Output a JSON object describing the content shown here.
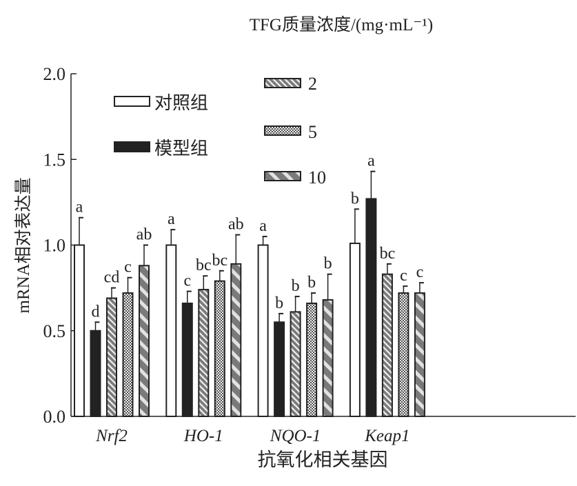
{
  "chart_data": {
    "type": "bar",
    "legend_title": "TFG质量浓度/(mg·mL⁻¹)",
    "ylabel": "mRNA相对表达量",
    "xlabel": "抗氧化相关基因",
    "ylim": [
      0,
      2.0
    ],
    "yticks": [
      "0.0",
      "0.5",
      "1.0",
      "1.5",
      "2.0"
    ],
    "categories": [
      "Nrf2",
      "HO-1",
      "NQO-1",
      "Keap1"
    ],
    "legend_placement": "top",
    "series": [
      {
        "name": "对照组",
        "pattern": "white",
        "values": [
          1.0,
          1.0,
          1.0,
          1.01
        ],
        "errors": [
          0.16,
          0.09,
          0.05,
          0.2
        ],
        "letters": [
          "a",
          "a",
          "a",
          "b"
        ]
      },
      {
        "name": "模型组",
        "pattern": "black",
        "values": [
          0.5,
          0.66,
          0.55,
          1.27
        ],
        "errors": [
          0.05,
          0.07,
          0.05,
          0.16
        ],
        "letters": [
          "d",
          "c",
          "b",
          "a"
        ]
      },
      {
        "name": "2",
        "pattern": "fine-stripes",
        "values": [
          0.69,
          0.74,
          0.61,
          0.83
        ],
        "errors": [
          0.06,
          0.08,
          0.09,
          0.06
        ],
        "letters": [
          "cd",
          "bc",
          "b",
          "bc"
        ]
      },
      {
        "name": "5",
        "pattern": "checker",
        "values": [
          0.72,
          0.79,
          0.66,
          0.72
        ],
        "errors": [
          0.09,
          0.06,
          0.06,
          0.04
        ],
        "letters": [
          "c",
          "bc",
          "b",
          "c"
        ]
      },
      {
        "name": "10",
        "pattern": "wide-stripes",
        "values": [
          0.88,
          0.89,
          0.68,
          0.72
        ],
        "errors": [
          0.12,
          0.17,
          0.15,
          0.06
        ],
        "letters": [
          "ab",
          "ab",
          "b",
          "c"
        ]
      }
    ],
    "colors": {
      "axis": "#222222",
      "black": "#222222",
      "gray": "#7a7a7a",
      "light": "#e2e2e2"
    }
  }
}
